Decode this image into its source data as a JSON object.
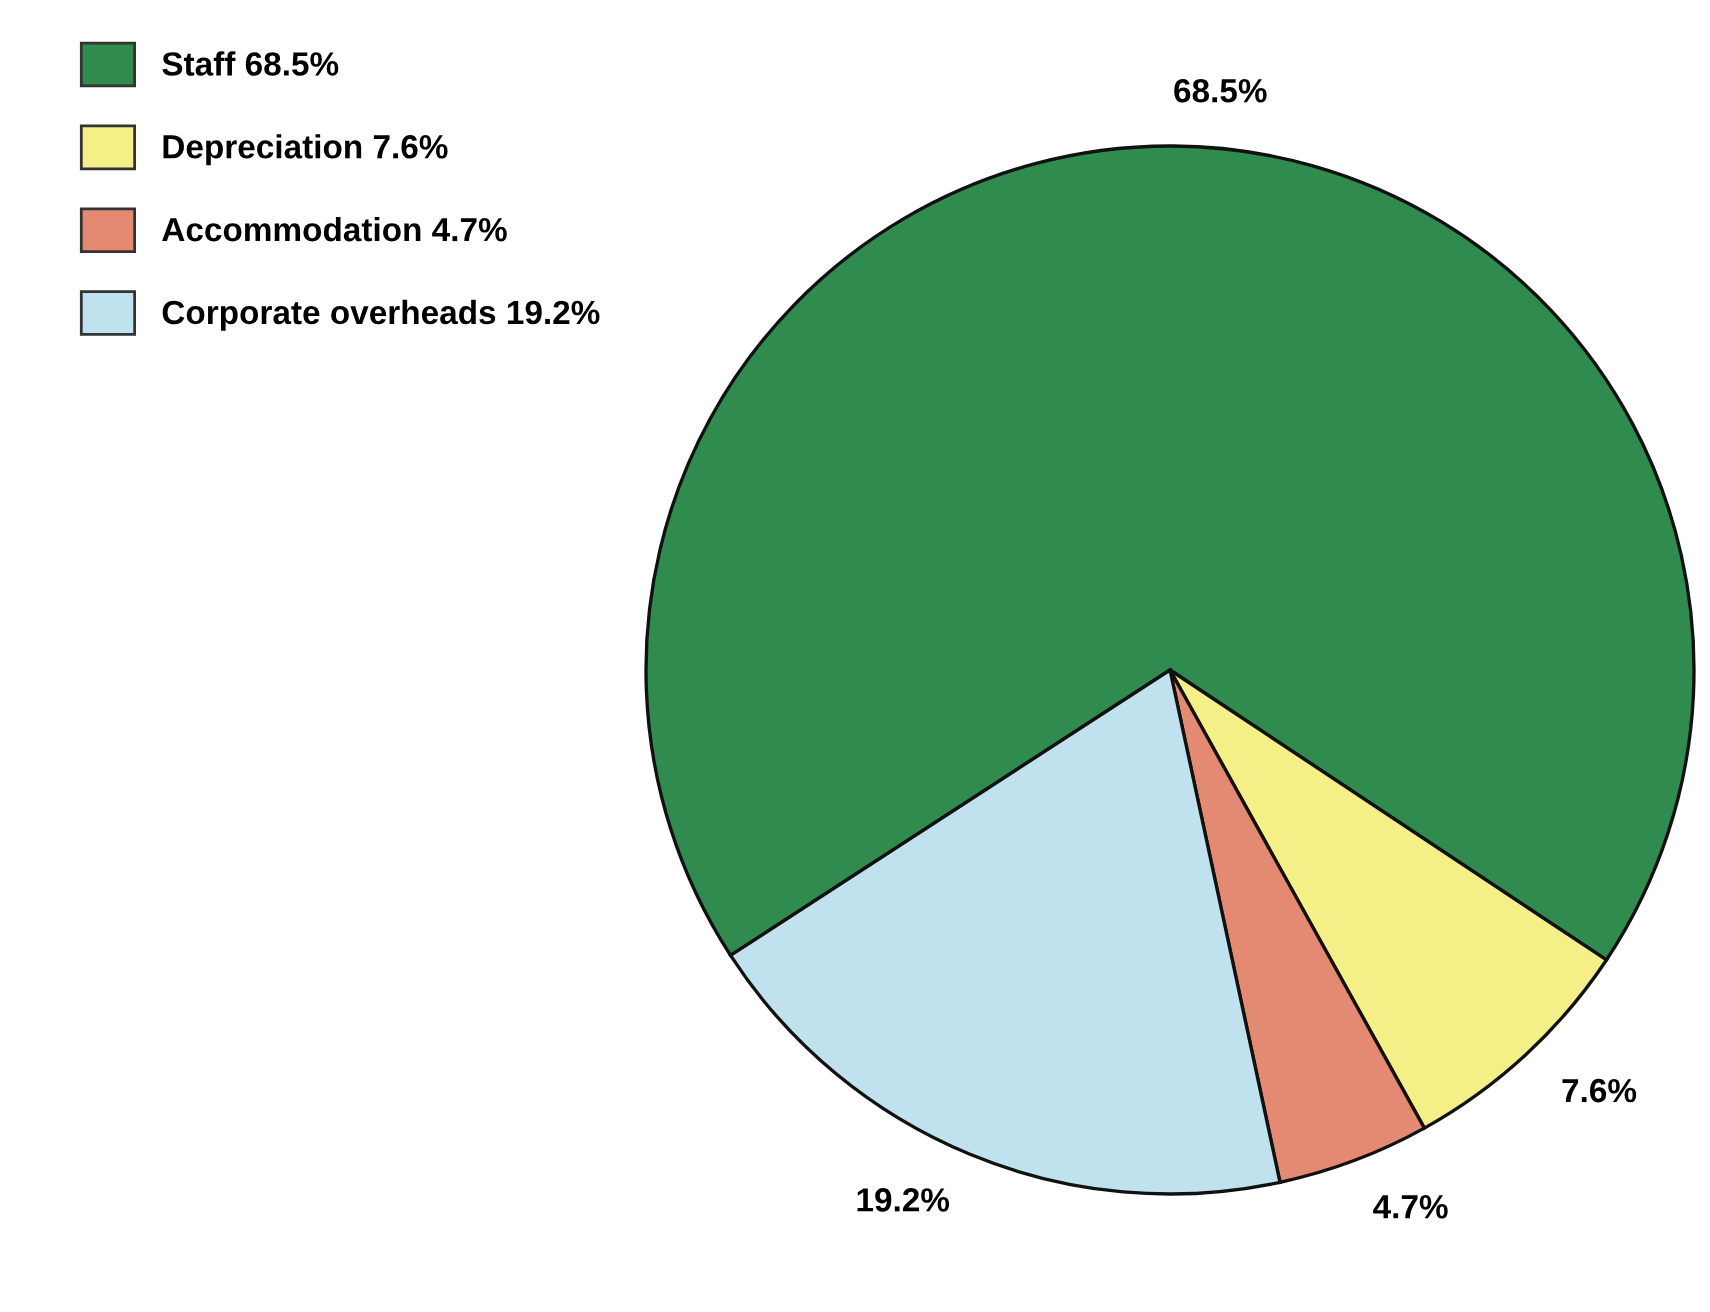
{
  "chart_data": {
    "type": "pie",
    "categories": [
      "Staff",
      "Depreciation",
      "Accommodation",
      "Corporate overheads"
    ],
    "values": [
      68.5,
      7.6,
      4.7,
      19.2
    ],
    "value_labels": [
      "68.5%",
      "7.6%",
      "4.7%",
      "19.2%"
    ],
    "colors": [
      "#2f8c4e",
      "#f4ef86",
      "#e58a72",
      "#bfe2ee"
    ],
    "legend": "top left"
  }
}
